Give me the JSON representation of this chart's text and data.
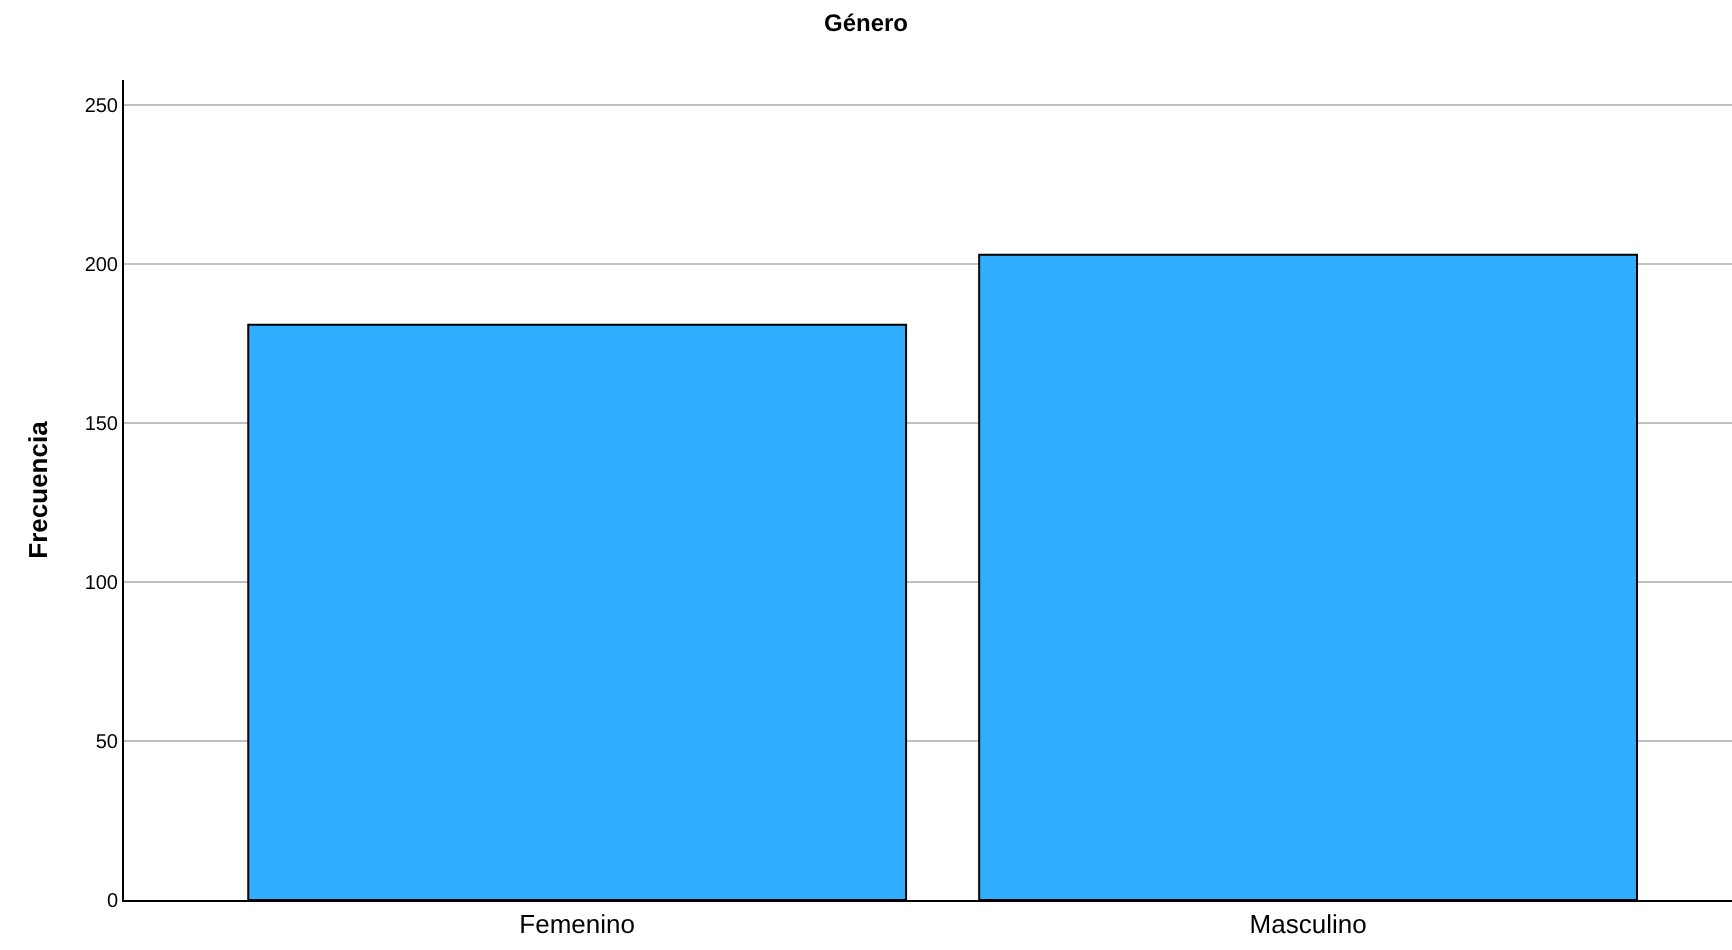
{
  "chart_data": {
    "type": "bar",
    "title": "Género",
    "ylabel": "Frecuencia",
    "categories": [
      "Femenino",
      "Masculino"
    ],
    "values": [
      181,
      203
    ],
    "color": "#31aeff",
    "ylim": [
      0,
      258
    ],
    "yticks": [
      0,
      50,
      100,
      150,
      200,
      250
    ],
    "grid": "y",
    "legend": false
  }
}
